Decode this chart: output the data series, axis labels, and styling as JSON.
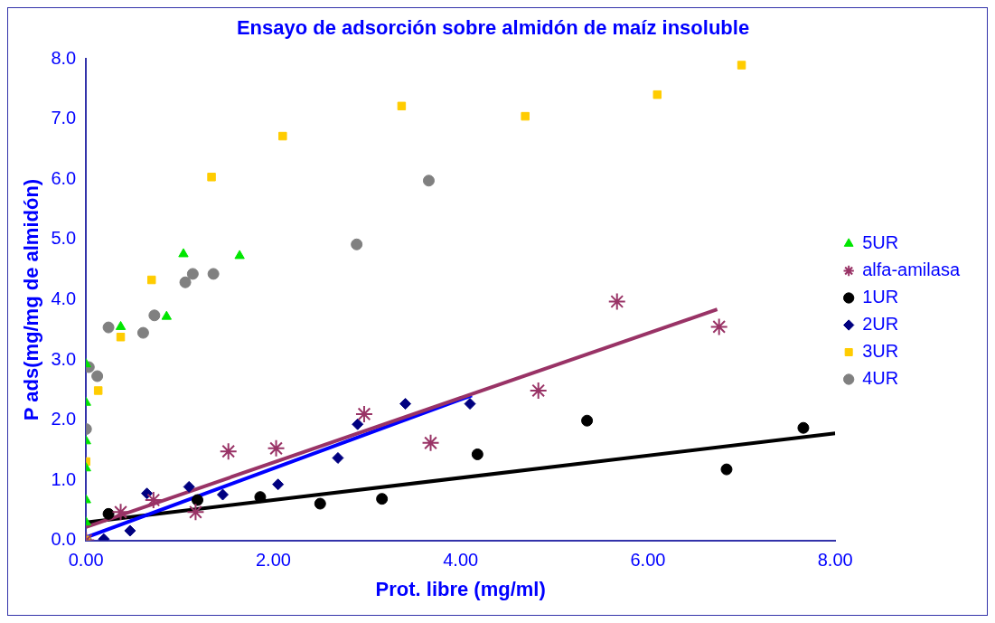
{
  "chart_data": {
    "type": "scatter",
    "title": "Ensayo de adsorción sobre almidón de maíz insoluble",
    "xlabel": "Prot. libre (mg/ml)",
    "ylabel": "P ads(mg/mg de almidón)",
    "xlim": [
      0,
      8
    ],
    "xticks": [
      {
        "value": 0,
        "label": "0.00"
      },
      {
        "value": 2,
        "label": "2.00"
      },
      {
        "value": 4,
        "label": "4.00"
      },
      {
        "value": 6,
        "label": "6.00"
      },
      {
        "value": 8,
        "label": "8.00"
      }
    ],
    "ylim": [
      0,
      8
    ],
    "yticks": [
      {
        "value": 0,
        "label": "0.0"
      },
      {
        "value": 1,
        "label": "1.0"
      },
      {
        "value": 2,
        "label": "2.0"
      },
      {
        "value": 3,
        "label": "3.0"
      },
      {
        "value": 4,
        "label": "4.0"
      },
      {
        "value": 5,
        "label": "5.0"
      },
      {
        "value": 6,
        "label": "6.0"
      },
      {
        "value": 7,
        "label": "7.0"
      },
      {
        "value": 8,
        "label": "8.0"
      }
    ],
    "grid": false,
    "legend": "right",
    "series": [
      {
        "name": "5UR",
        "color": "#00e600",
        "marker": "triangle",
        "x": [
          0,
          0,
          0,
          0,
          0,
          0,
          0.37,
          0.86,
          1.04,
          1.64
        ],
        "values": [
          0.3,
          0.67,
          1.2,
          1.65,
          2.29,
          2.93,
          3.55,
          3.72,
          4.76,
          4.73
        ]
      },
      {
        "name": "alfa-amilasa",
        "color": "#993366",
        "marker": "cross",
        "x": [
          0,
          0.37,
          0.72,
          1.17,
          1.52,
          2.03,
          2.97,
          3.68,
          4.83,
          5.67,
          6.76
        ],
        "values": [
          0,
          0.47,
          0.67,
          0.47,
          1.48,
          1.53,
          2.1,
          1.62,
          2.49,
          3.97,
          3.55
        ]
      },
      {
        "name": "1UR",
        "color": "#000000",
        "marker": "circle",
        "x": [
          0.24,
          1.19,
          1.86,
          2.5,
          3.16,
          4.18,
          5.35,
          6.84,
          7.66
        ],
        "values": [
          0.44,
          0.67,
          0.72,
          0.61,
          0.69,
          1.43,
          1.99,
          1.18,
          1.87
        ]
      },
      {
        "name": "2UR",
        "color": "#000080",
        "marker": "diamond",
        "x": [
          0.19,
          0.47,
          0.65,
          1.1,
          1.46,
          2.05,
          2.69,
          2.9,
          3.41,
          4.1
        ],
        "values": [
          0.02,
          0.16,
          0.78,
          0.89,
          0.76,
          0.93,
          1.37,
          1.93,
          2.27,
          2.27
        ]
      },
      {
        "name": "3UR",
        "color": "#ffcc00",
        "marker": "square",
        "x": [
          0,
          0,
          0.13,
          0.37,
          0.7,
          1.34,
          2.1,
          3.37,
          4.69,
          6.1,
          7.0
        ],
        "values": [
          0,
          1.31,
          2.49,
          3.38,
          4.33,
          6.04,
          6.72,
          7.22,
          7.05,
          7.41,
          7.9
        ]
      },
      {
        "name": "4UR",
        "color": "#808080",
        "marker": "circle",
        "x": [
          0,
          0,
          0.03,
          0.12,
          0.24,
          0.61,
          0.73,
          1.06,
          1.14,
          1.36,
          2.89,
          3.66
        ],
        "values": [
          0,
          1.85,
          2.88,
          2.73,
          3.54,
          3.45,
          3.74,
          4.29,
          4.43,
          4.43,
          4.92,
          5.98
        ]
      },
      {
        "type": "line",
        "color": "#993366",
        "marker": "none",
        "x": [
          0,
          6.74
        ],
        "values": [
          0.22,
          3.84
        ]
      },
      {
        "type": "line",
        "color": "#0000ff",
        "marker": "none",
        "x": [
          0,
          4.12
        ],
        "values": [
          0.05,
          2.41
        ]
      },
      {
        "type": "line",
        "color": "#000000",
        "marker": "none",
        "x": [
          0,
          8
        ],
        "values": [
          0.3,
          1.78
        ]
      }
    ]
  }
}
